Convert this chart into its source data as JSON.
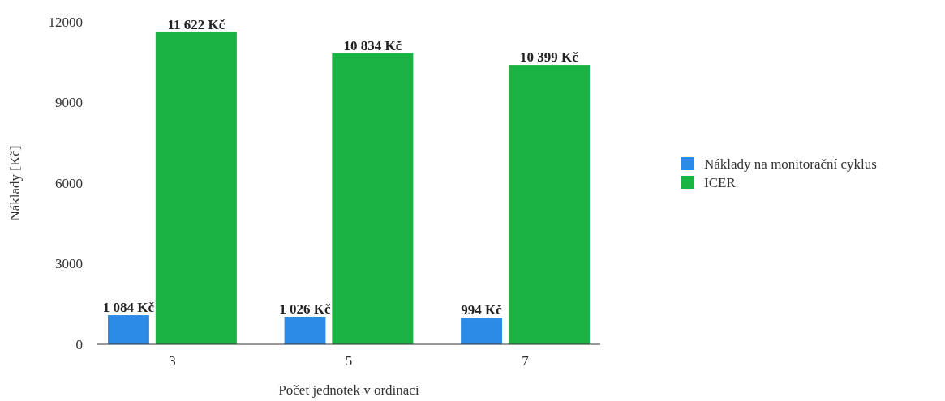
{
  "chart_data": {
    "type": "bar",
    "xlabel": "Počet jednotek v ordinaci",
    "ylabel": "Náklady [Kč]",
    "categories": [
      "3",
      "5",
      "7"
    ],
    "series": [
      {
        "name": "Náklady na monitorační cyklus",
        "color": "#2b8be6",
        "values": [
          1084,
          1026,
          994
        ],
        "value_labels": [
          "1 084 Kč",
          "1 026 Kč",
          "994 Kč"
        ]
      },
      {
        "name": "ICER",
        "color": "#18b342",
        "values": [
          11622,
          10834,
          10399
        ],
        "value_labels": [
          "11 622 Kč",
          "10 834 Kč",
          "10 399 Kč"
        ]
      }
    ],
    "ylim": [
      0,
      12000
    ],
    "yticks": [
      0,
      3000,
      6000,
      9000,
      12000
    ],
    "grid": false,
    "legend": "right"
  }
}
